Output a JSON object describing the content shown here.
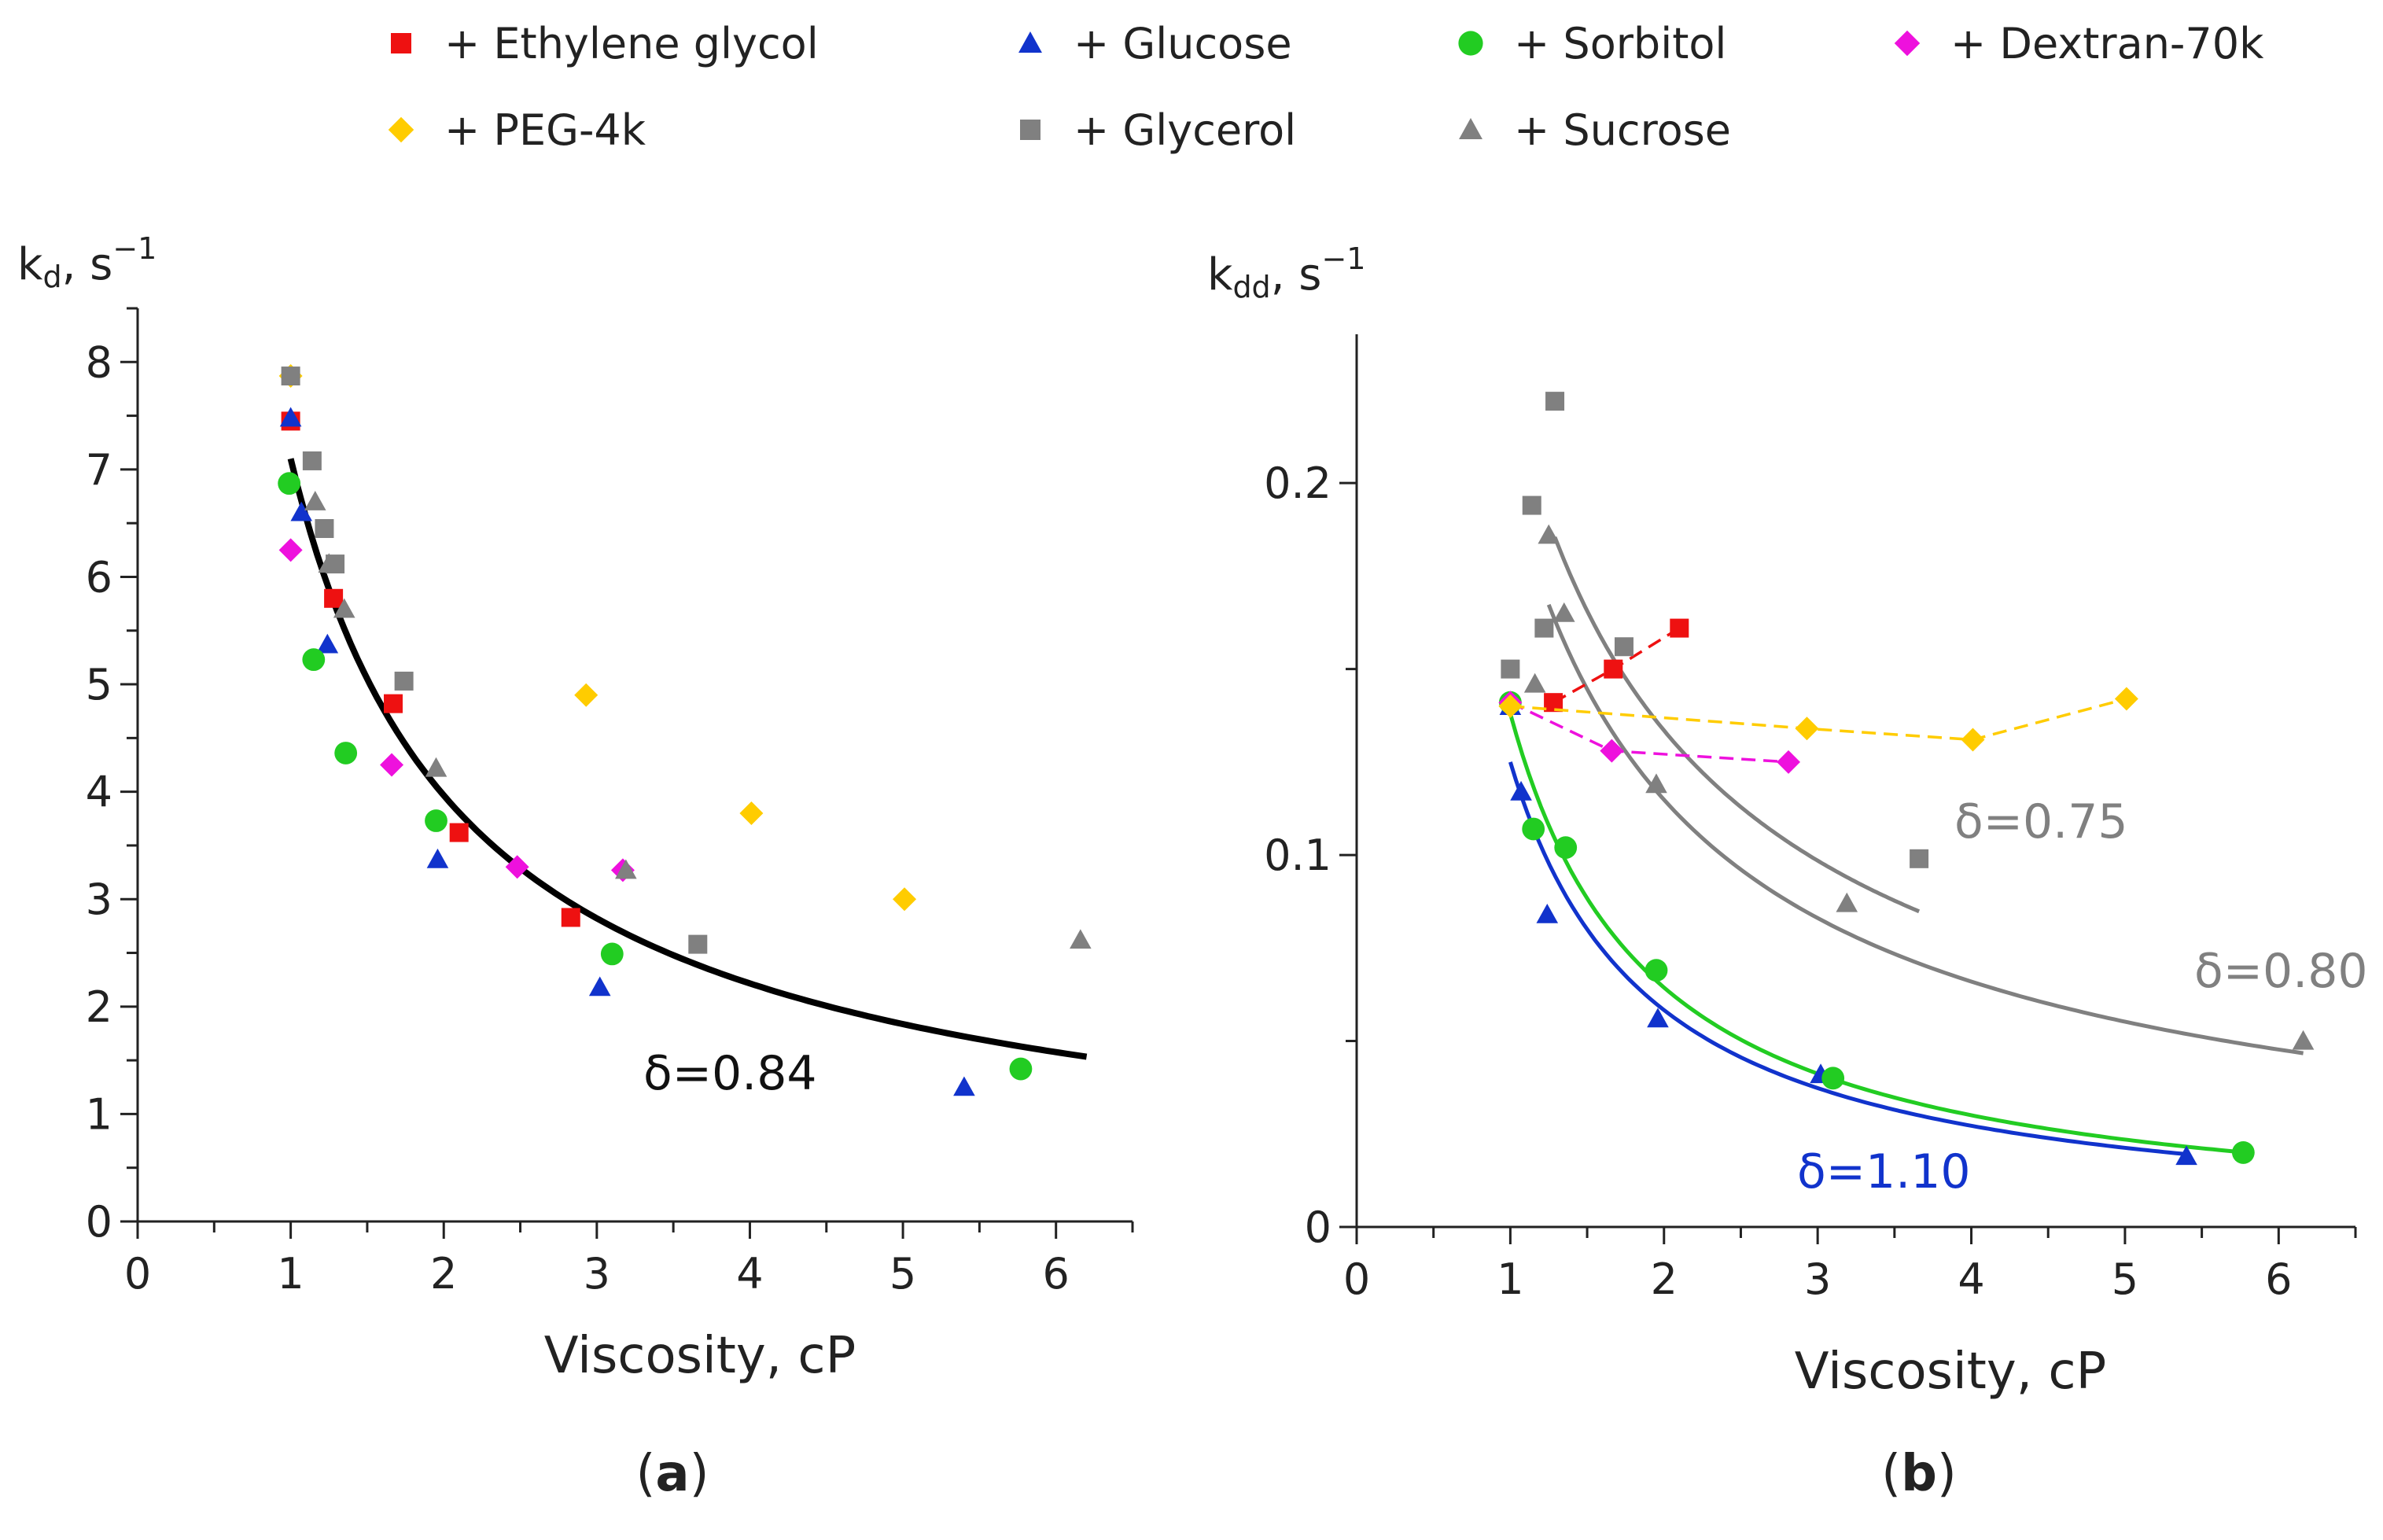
{
  "legend": [
    {
      "label": "+ Ethylene glycol",
      "color": "#ee1111",
      "marker": "square"
    },
    {
      "label": "+ Glucose",
      "color": "#1133cc",
      "marker": "triangle"
    },
    {
      "label": "+ Sorbitol",
      "color": "#22cc22",
      "marker": "circle"
    },
    {
      "label": "+ Dextran-70k",
      "color": "#ee11dd",
      "marker": "diamond"
    },
    {
      "label": "+ PEG-4k",
      "color": "#ffcc00",
      "marker": "diamond"
    },
    {
      "label": "+ Glycerol",
      "color": "#808080",
      "marker": "square"
    },
    {
      "label": "+ Sucrose",
      "color": "#808080",
      "marker": "triangle"
    }
  ],
  "chart_data": [
    {
      "type": "scatter",
      "panel_label": "(a)",
      "xlabel": "Viscosity, cP",
      "ylabel": "k",
      "ylabel_sub": "d",
      "ylabel_suffix": ", s",
      "ylabel_sup": "−1",
      "xlim": [
        0,
        6.5
      ],
      "ylim": [
        0,
        8.5
      ],
      "xticks": [
        0,
        1,
        2,
        3,
        4,
        5,
        6
      ],
      "yticks": [
        0,
        1,
        2,
        3,
        4,
        5,
        6,
        7,
        8
      ],
      "series": [
        {
          "name": "+ Ethylene glycol",
          "points": [
            [
              1.0,
              7.45
            ],
            [
              1.28,
              5.8
            ],
            [
              1.67,
              4.82
            ],
            [
              2.1,
              3.62
            ],
            [
              2.83,
              2.83
            ]
          ]
        },
        {
          "name": "+ Glucose",
          "points": [
            [
              1.0,
              7.48
            ],
            [
              1.07,
              6.6
            ],
            [
              1.24,
              5.37
            ],
            [
              1.96,
              3.37
            ],
            [
              3.02,
              2.18
            ],
            [
              5.4,
              1.25
            ]
          ]
        },
        {
          "name": "+ Sorbitol",
          "points": [
            [
              0.99,
              6.87
            ],
            [
              1.15,
              5.23
            ],
            [
              1.36,
              4.36
            ],
            [
              1.95,
              3.73
            ],
            [
              3.1,
              2.49
            ],
            [
              5.77,
              1.42
            ]
          ]
        },
        {
          "name": "+ Dextran-70k",
          "points": [
            [
              1.0,
              6.25
            ],
            [
              1.66,
              4.25
            ],
            [
              2.48,
              3.3
            ],
            [
              3.17,
              3.27
            ]
          ]
        },
        {
          "name": "+ PEG-4k",
          "points": [
            [
              1.0,
              7.87
            ],
            [
              2.93,
              4.9
            ],
            [
              4.01,
              3.8
            ],
            [
              5.01,
              3.0
            ]
          ]
        },
        {
          "name": "+ Glycerol",
          "points": [
            [
              1.0,
              7.87
            ],
            [
              1.14,
              7.08
            ],
            [
              1.22,
              6.45
            ],
            [
              1.29,
              6.12
            ],
            [
              1.74,
              5.03
            ],
            [
              3.66,
              2.58
            ]
          ]
        },
        {
          "name": "+ Sucrose",
          "points": [
            [
              1.16,
              6.7
            ],
            [
              1.25,
              6.12
            ],
            [
              1.35,
              5.7
            ],
            [
              1.95,
              4.22
            ],
            [
              3.19,
              3.27
            ],
            [
              6.16,
              2.62
            ]
          ]
        }
      ],
      "fits": [
        {
          "delta": 0.84,
          "a": 7.1,
          "x_range": [
            1.0,
            6.2
          ],
          "color": "#000000",
          "label": "δ=0.84"
        }
      ]
    },
    {
      "type": "scatter",
      "panel_label": "(b)",
      "xlabel": "Viscosity, cP",
      "ylabel": "k",
      "ylabel_sub": "dd",
      "ylabel_suffix": ", s",
      "ylabel_sup": "−1",
      "xlim": [
        0,
        6.5
      ],
      "ylim": [
        0,
        0.24
      ],
      "xticks": [
        0,
        1,
        2,
        3,
        4,
        5,
        6
      ],
      "yticks": [
        0,
        0.1,
        0.2
      ],
      "ytick_labels": [
        "0",
        "0.1",
        "0.2"
      ],
      "series": [
        {
          "name": "+ Ethylene glycol",
          "points": [
            [
              1.28,
              0.141
            ],
            [
              1.67,
              0.15
            ],
            [
              2.1,
              0.161
            ]
          ],
          "dashed": true
        },
        {
          "name": "+ Glucose",
          "points": [
            [
              1.0,
              0.14
            ],
            [
              1.07,
              0.117
            ],
            [
              1.24,
              0.084
            ],
            [
              1.96,
              0.056
            ],
            [
              3.02,
              0.041
            ],
            [
              5.4,
              0.019
            ]
          ]
        },
        {
          "name": "+ Sorbitol",
          "points": [
            [
              1.0,
              0.141
            ],
            [
              1.15,
              0.107
            ],
            [
              1.36,
              0.102
            ],
            [
              1.95,
              0.069
            ],
            [
              3.1,
              0.04
            ],
            [
              5.77,
              0.02
            ]
          ]
        },
        {
          "name": "+ Dextran-70k",
          "points": [
            [
              1.0,
              0.141
            ],
            [
              1.66,
              0.128
            ],
            [
              2.81,
              0.125
            ]
          ],
          "dashed": true
        },
        {
          "name": "+ PEG-4k",
          "points": [
            [
              1.0,
              0.14
            ],
            [
              2.93,
              0.134
            ],
            [
              4.01,
              0.131
            ],
            [
              5.01,
              0.142
            ]
          ],
          "dashed": true
        },
        {
          "name": "+ Glycerol",
          "points": [
            [
              1.0,
              0.15
            ],
            [
              1.14,
              0.194
            ],
            [
              1.22,
              0.161
            ],
            [
              1.29,
              0.222
            ],
            [
              1.74,
              0.156
            ],
            [
              3.66,
              0.099
            ]
          ]
        },
        {
          "name": "+ Sucrose",
          "points": [
            [
              1.16,
              0.146
            ],
            [
              1.25,
              0.186
            ],
            [
              1.35,
              0.165
            ],
            [
              1.95,
              0.119
            ],
            [
              3.19,
              0.087
            ],
            [
              6.16,
              0.05
            ]
          ]
        }
      ],
      "fits": [
        {
          "delta": 0.75,
          "a": 0.2245,
          "x_range": [
            1.29,
            3.66
          ],
          "color": "#808080",
          "label": "δ=0.75"
        },
        {
          "delta": 0.8,
          "a": 0.2,
          "x_range": [
            1.25,
            6.16
          ],
          "color": "#808080",
          "label": "δ=0.80"
        },
        {
          "delta": 1.1,
          "a": 0.125,
          "x_range": [
            1.0,
            5.4
          ],
          "color": "#1133cc",
          "label": "δ=1.10"
        },
        {
          "delta": 1.1,
          "a": 0.138,
          "x_range": [
            1.0,
            5.77
          ],
          "color": "#22cc22",
          "label": ""
        }
      ]
    }
  ]
}
